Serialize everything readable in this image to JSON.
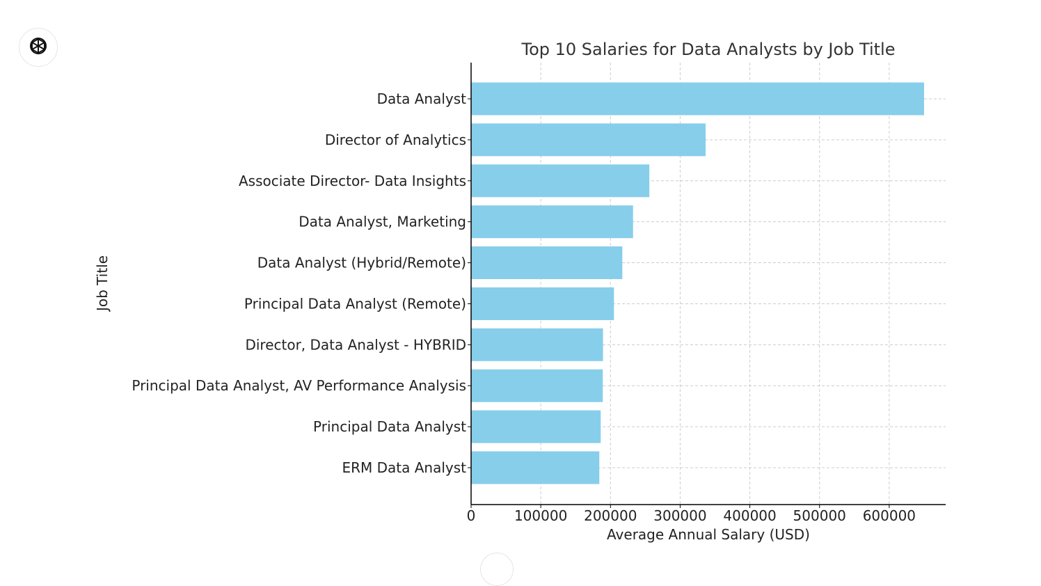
{
  "app": {
    "logo_icon": "openai-logo-icon"
  },
  "chart_data": {
    "type": "bar",
    "orientation": "horizontal",
    "title": "Top 10 Salaries for Data Analysts by Job Title",
    "xlabel": "Average Annual Salary (USD)",
    "ylabel": "Job Title",
    "categories": [
      "Data Analyst",
      "Director of Analytics",
      "Associate Director- Data Insights",
      "Data Analyst, Marketing",
      "Data Analyst (Hybrid/Remote)",
      "Principal Data Analyst (Remote)",
      "Director, Data Analyst - HYBRID",
      "Principal Data Analyst, AV Performance Analysis",
      "Principal Data Analyst",
      "ERM Data Analyst"
    ],
    "values": [
      650000,
      336500,
      255800,
      232400,
      217000,
      205000,
      189300,
      189000,
      186000,
      184000
    ],
    "xlim": [
      0,
      681000
    ],
    "xticks": [
      0,
      100000,
      200000,
      300000,
      400000,
      500000,
      600000
    ],
    "xtick_labels": [
      "0",
      "100000",
      "200000",
      "300000",
      "400000",
      "500000",
      "600000"
    ],
    "grid": true,
    "colors": {
      "bar": "#87ceeb",
      "axis": "#000000",
      "grid": "#cccccc",
      "text": "#222222",
      "title": "#333333"
    }
  }
}
